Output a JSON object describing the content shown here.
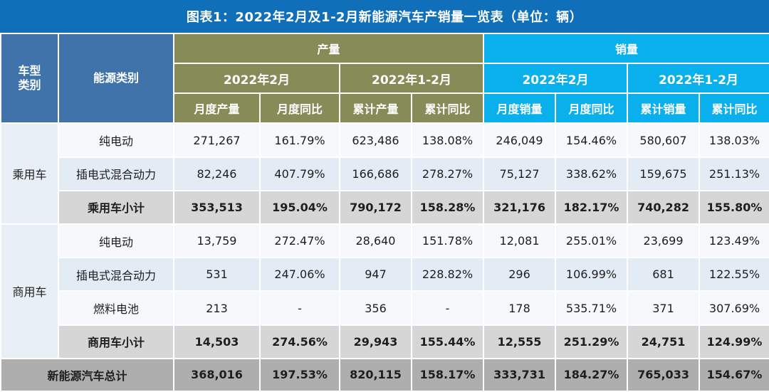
{
  "title": "图表1：2022年2月及1-2月新能源汽车产销量一览表（单位：辆）",
  "header": {
    "vehicle_type": "车型\n类别",
    "energy_type": "能源类别",
    "production": "产量",
    "sales": "销量",
    "period_month": "2022年2月",
    "period_ytd": "2022年1-2月",
    "columns": [
      "月度产量",
      "月度同比",
      "累计产量",
      "累计同比",
      "月度销量",
      "月度同比",
      "累计销量",
      "累计同比"
    ]
  },
  "groups": [
    {
      "category": "乘用车",
      "rows": [
        {
          "energy": "纯电动",
          "values": [
            "271,267",
            "161.79%",
            "623,486",
            "138.08%",
            "246,049",
            "154.46%",
            "580,607",
            "138.03%"
          ]
        },
        {
          "energy": "插电式混合动力",
          "values": [
            "82,246",
            "407.79%",
            "166,686",
            "278.27%",
            "75,127",
            "338.62%",
            "159,675",
            "251.13%"
          ]
        },
        {
          "energy": "乘用车小计",
          "values": [
            "353,513",
            "195.04%",
            "790,172",
            "158.28%",
            "321,176",
            "182.17%",
            "740,282",
            "155.80%"
          ]
        }
      ]
    },
    {
      "category": "商用车",
      "rows": [
        {
          "energy": "纯电动",
          "values": [
            "13,759",
            "272.47%",
            "28,640",
            "151.78%",
            "12,081",
            "255.01%",
            "23,699",
            "123.49%"
          ]
        },
        {
          "energy": "插电式混合动力",
          "values": [
            "531",
            "247.06%",
            "947",
            "228.82%",
            "296",
            "106.99%",
            "681",
            "122.55%"
          ]
        },
        {
          "energy": "燃料电池",
          "values": [
            "213",
            "-",
            "356",
            "-",
            "178",
            "535.71%",
            "371",
            "307.69%"
          ]
        },
        {
          "energy": "商用车小计",
          "values": [
            "14,503",
            "274.56%",
            "29,943",
            "155.44%",
            "12,555",
            "251.29%",
            "24,751",
            "124.99%"
          ]
        }
      ]
    }
  ],
  "total": {
    "label": "新能源汽车总计",
    "values": [
      "368,016",
      "197.53%",
      "820,115",
      "158.17%",
      "333,731",
      "184.27%",
      "765,033",
      "154.67%"
    ]
  }
}
